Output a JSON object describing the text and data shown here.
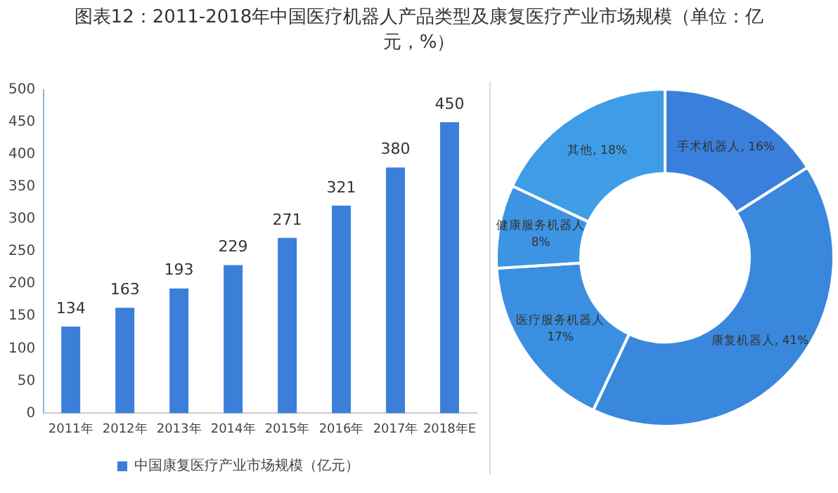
{
  "chart_data": [
    {
      "type": "bar",
      "title": "图表12：2011-2018年中国医疗机器人产品类型及康复医疗产业市场规模（单位：亿元，%）",
      "categories": [
        "2011年",
        "2012年",
        "2013年",
        "2014年",
        "2015年",
        "2016年",
        "2017年",
        "2018年E"
      ],
      "series": [
        {
          "name": "中国康复医疗产业市场规模（亿元）",
          "color": "#3b7fd9",
          "values": [
            134,
            163,
            193,
            229,
            271,
            321,
            380,
            450
          ]
        }
      ],
      "ylim": [
        0,
        500
      ],
      "yticks": [
        0,
        50,
        100,
        150,
        200,
        250,
        300,
        350,
        400,
        450,
        500
      ],
      "grid": false,
      "legend": "bottom",
      "data_labels": true
    },
    {
      "type": "donut",
      "categories": [
        "手术机器人",
        "康复机器人",
        "医疗服务机器人",
        "健康服务机器人",
        "其他"
      ],
      "values": [
        16,
        41,
        17,
        8,
        18
      ],
      "value_labels": [
        "16%",
        "41%",
        "17%",
        "8%",
        "18%"
      ],
      "colors": [
        "#3a7fdb",
        "#3a87de",
        "#3b8fe0",
        "#3c94e2",
        "#3e9de6"
      ],
      "legend": false
    }
  ]
}
